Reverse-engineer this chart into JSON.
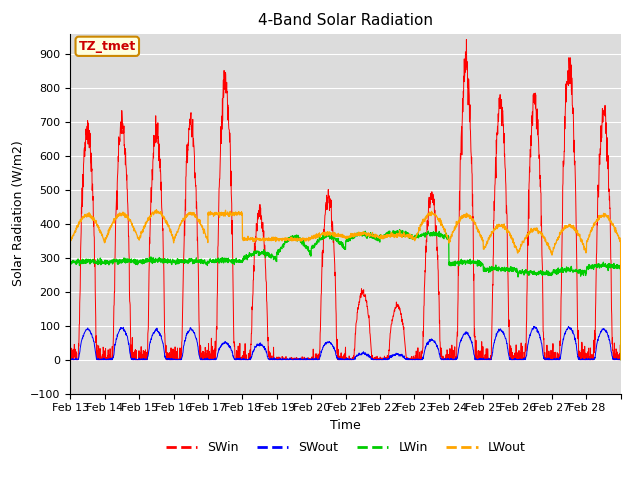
{
  "title": "4-Band Solar Radiation",
  "xlabel": "Time",
  "ylabel": "Solar Radiation (W/m2)",
  "ylim": [
    -100,
    960
  ],
  "yticks": [
    -100,
    0,
    100,
    200,
    300,
    400,
    500,
    600,
    700,
    800,
    900
  ],
  "x_tick_labels": [
    "Feb 13",
    "Feb 14",
    "Feb 15",
    "Feb 16",
    "Feb 17",
    "Feb 18",
    "Feb 19",
    "Feb 20",
    "Feb 21",
    "Feb 22",
    "Feb 23",
    "Feb 24",
    "Feb 25",
    "Feb 26",
    "Feb 27",
    "Feb 28"
  ],
  "colors": {
    "SWin": "#ff0000",
    "SWout": "#0000ff",
    "LWin": "#00cc00",
    "LWout": "#ffa500"
  },
  "annotation_text": "TZ_tmet",
  "annotation_color": "#cc0000",
  "annotation_bg": "#ffffdd",
  "annotation_border": "#cc8800",
  "plot_bg": "#dcdcdc",
  "figure_bg": "#ffffff",
  "title_fontsize": 11,
  "axis_fontsize": 9,
  "tick_fontsize": 8
}
